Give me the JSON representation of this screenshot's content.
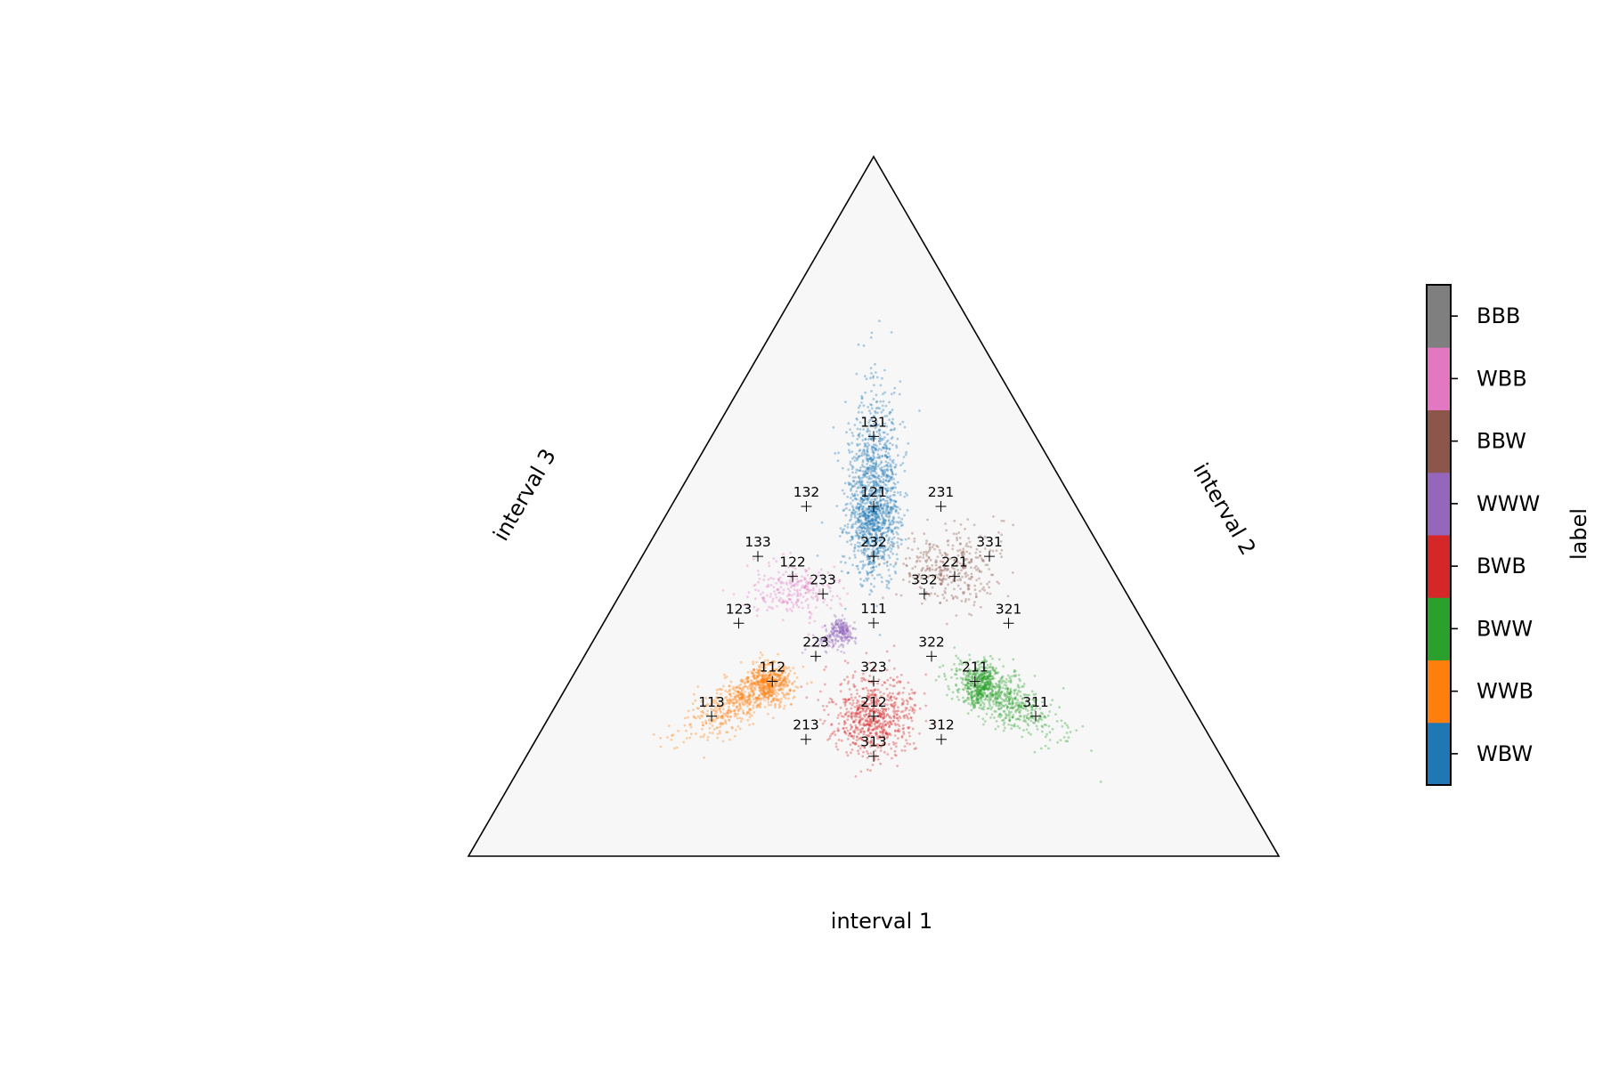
{
  "chart_data": {
    "type": "scatter",
    "subtype": "ternary",
    "grid": false,
    "legend": "colorbar-right",
    "axes": {
      "bottom_label": "interval 1",
      "right_label": "interval 2",
      "left_label": "interval 3"
    },
    "background_color": "#f7f7f7",
    "colorbar": {
      "label": "label",
      "categories": [
        {
          "name": "WBW",
          "color": "#1f77b4"
        },
        {
          "name": "WWB",
          "color": "#ff7f0e"
        },
        {
          "name": "BWW",
          "color": "#2ca02c"
        },
        {
          "name": "BWB",
          "color": "#d62728"
        },
        {
          "name": "WWW",
          "color": "#9467bd"
        },
        {
          "name": "BBW",
          "color": "#8c564b"
        },
        {
          "name": "WBB",
          "color": "#e377c2"
        },
        {
          "name": "BBB",
          "color": "#7f7f7f"
        }
      ]
    },
    "reference_points": [
      {
        "label": "111",
        "a": 0.333,
        "b": 0.333,
        "c": 0.333
      },
      {
        "label": "112",
        "a": 0.25,
        "b": 0.25,
        "c": 0.5
      },
      {
        "label": "113",
        "a": 0.2,
        "b": 0.2,
        "c": 0.6
      },
      {
        "label": "121",
        "a": 0.25,
        "b": 0.5,
        "c": 0.25
      },
      {
        "label": "122",
        "a": 0.2,
        "b": 0.4,
        "c": 0.4
      },
      {
        "label": "123",
        "a": 0.167,
        "b": 0.333,
        "c": 0.5
      },
      {
        "label": "131",
        "a": 0.2,
        "b": 0.6,
        "c": 0.2
      },
      {
        "label": "132",
        "a": 0.167,
        "b": 0.5,
        "c": 0.333
      },
      {
        "label": "133",
        "a": 0.143,
        "b": 0.429,
        "c": 0.429
      },
      {
        "label": "211",
        "a": 0.5,
        "b": 0.25,
        "c": 0.25
      },
      {
        "label": "212",
        "a": 0.4,
        "b": 0.2,
        "c": 0.4
      },
      {
        "label": "213",
        "a": 0.333,
        "b": 0.167,
        "c": 0.5
      },
      {
        "label": "221",
        "a": 0.4,
        "b": 0.4,
        "c": 0.2
      },
      {
        "label": "223",
        "a": 0.286,
        "b": 0.286,
        "c": 0.429
      },
      {
        "label": "231",
        "a": 0.333,
        "b": 0.5,
        "c": 0.167
      },
      {
        "label": "232",
        "a": 0.286,
        "b": 0.429,
        "c": 0.286
      },
      {
        "label": "233",
        "a": 0.25,
        "b": 0.375,
        "c": 0.375
      },
      {
        "label": "311",
        "a": 0.6,
        "b": 0.2,
        "c": 0.2
      },
      {
        "label": "312",
        "a": 0.5,
        "b": 0.167,
        "c": 0.333
      },
      {
        "label": "313",
        "a": 0.429,
        "b": 0.143,
        "c": 0.429
      },
      {
        "label": "321",
        "a": 0.5,
        "b": 0.333,
        "c": 0.167
      },
      {
        "label": "322",
        "a": 0.429,
        "b": 0.286,
        "c": 0.286
      },
      {
        "label": "323",
        "a": 0.375,
        "b": 0.25,
        "c": 0.375
      },
      {
        "label": "331",
        "a": 0.429,
        "b": 0.429,
        "c": 0.143
      },
      {
        "label": "332",
        "a": 0.375,
        "b": 0.375,
        "c": 0.25
      }
    ],
    "clusters": [
      {
        "category": "WBW",
        "a": 0.25,
        "b": 0.5,
        "c": 0.25,
        "spread_across": 0.03,
        "spread_along": 0.13,
        "elongation": "vertical",
        "n": 1400
      },
      {
        "category": "WWB",
        "a": 0.24,
        "b": 0.24,
        "c": 0.52,
        "spread_across": 0.025,
        "spread_along": 0.09,
        "elongation": "toward-c-corner",
        "n": 900
      },
      {
        "category": "BWW",
        "a": 0.52,
        "b": 0.24,
        "c": 0.24,
        "spread_across": 0.025,
        "spread_along": 0.09,
        "elongation": "toward-a-corner",
        "n": 900
      },
      {
        "category": "BWB",
        "a": 0.4,
        "b": 0.2,
        "c": 0.4,
        "spread_across": 0.045,
        "spread_along": 0.045,
        "elongation": "round",
        "n": 700
      },
      {
        "category": "WWW",
        "a": 0.3,
        "b": 0.32,
        "c": 0.38,
        "spread_across": 0.015,
        "spread_along": 0.03,
        "elongation": "toward-c-corner",
        "n": 250
      },
      {
        "category": "BBW",
        "a": 0.39,
        "b": 0.41,
        "c": 0.2,
        "spread_across": 0.04,
        "spread_along": 0.06,
        "elongation": "diffuse",
        "n": 350
      },
      {
        "category": "WBB",
        "a": 0.21,
        "b": 0.38,
        "c": 0.41,
        "spread_across": 0.03,
        "spread_along": 0.05,
        "elongation": "diffuse",
        "n": 250
      }
    ]
  }
}
